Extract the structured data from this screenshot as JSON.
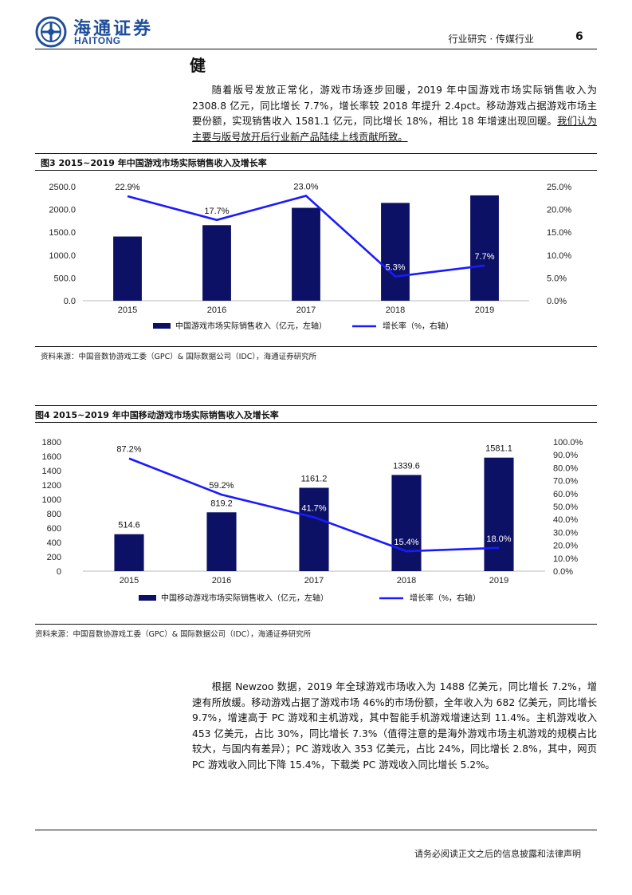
{
  "header": {
    "logo_cn": "海通证券",
    "logo_en": "HAITONG",
    "section": "行业研究 · 传媒行业",
    "page": "6"
  },
  "heading_char": "健",
  "paragraph1": {
    "text": "随着版号发放正常化，游戏市场逐步回暖，2019 年中国游戏市场实际销售收入为 2308.8 亿元，同比增长 7.7%，增长率较 2018 年提升 2.4pct。移动游戏占据游戏市场主要份额，实现销售收入 1581.1 亿元，同比增长 18%，相比 18 年增速出现回暖。",
    "underlined": "我们认为主要与版号放开后行业新产品陆续上线贡献所致。"
  },
  "figure3": {
    "title": "图3  2015~2019 年中国游戏市场实际销售收入及增长率",
    "source": "资料来源：中国音数协游戏工委（GPC）& 国际数据公司（IDC），海通证券研究所",
    "legend_bar": "中国游戏市场实际销售收入（亿元，左轴）",
    "legend_line": "增长率（%，右轴）"
  },
  "figure4": {
    "title": "图4  2015~2019 年中国移动游戏市场实际销售收入及增长率",
    "source": "资料来源：中国音数协游戏工委（GPC）& 国际数据公司（IDC），海通证券研究所",
    "legend_bar": "中国移动游戏市场实际销售收入（亿元，左轴）",
    "legend_line": "增长率（%，右轴）"
  },
  "paragraph2": {
    "text": "根据 Newzoo 数据，2019 年全球游戏市场收入为 1488 亿美元，同比增长 7.2%，增速有所放缓。移动游戏占据了游戏市场 46%的市场份额，全年收入为 682 亿美元，同比增长 9.7%，增速高于 PC 游戏和主机游戏，其中智能手机游戏增速达到 11.4%。主机游戏收入 453 亿美元，占比 30%，同比增长 7.3%（值得注意的是海外游戏市场主机游戏的规模占比较大，与国内有差异）；PC 游戏收入 353 亿美元，占比 24%，同比增长 2.8%，其中，网页 PC 游戏收入同比下降 15.4%，下载类 PC 游戏收入同比增长 5.2%。"
  },
  "footer": "请务必阅读正文之后的信息披露和法律声明",
  "colors": {
    "bar": "#0d1166",
    "line": "#1a1aff",
    "brand": "#1f4e9c"
  },
  "chart_data": [
    {
      "type": "bar",
      "categories": [
        "2015",
        "2016",
        "2017",
        "2018",
        "2019"
      ],
      "series": [
        {
          "name": "中国游戏市场实际销售收入（亿元，左轴）",
          "type": "bar",
          "axis": "left",
          "values": [
            1407,
            1656,
            2036,
            2144,
            2309
          ]
        },
        {
          "name": "增长率（%，右轴）",
          "type": "line",
          "axis": "right",
          "values": [
            22.9,
            17.7,
            23.0,
            5.3,
            7.7
          ],
          "labels": [
            "22.9%",
            "17.7%",
            "23.0%",
            "5.3%",
            "7.7%"
          ]
        }
      ],
      "left_axis": {
        "ylim": [
          0,
          2500
        ],
        "ticks": [
          "0.0",
          "500.0",
          "1000.0",
          "1500.0",
          "2000.0",
          "2500.0"
        ]
      },
      "right_axis": {
        "ylim": [
          0,
          25
        ],
        "ticks": [
          "0.0%",
          "5.0%",
          "10.0%",
          "15.0%",
          "20.0%",
          "25.0%"
        ]
      },
      "legend": "bottom"
    },
    {
      "type": "bar",
      "categories": [
        "2015",
        "2016",
        "2017",
        "2018",
        "2019"
      ],
      "series": [
        {
          "name": "中国移动游戏市场实际销售收入（亿元，左轴）",
          "type": "bar",
          "axis": "left",
          "values": [
            514.6,
            819.2,
            1161.2,
            1339.6,
            1581.1
          ],
          "labels": [
            "514.6",
            "819.2",
            "1161.2",
            "1339.6",
            "1581.1"
          ]
        },
        {
          "name": "增长率（%，右轴）",
          "type": "line",
          "axis": "right",
          "values": [
            87.2,
            59.2,
            41.7,
            15.4,
            18.0
          ],
          "labels": [
            "87.2%",
            "59.2%",
            "41.7%",
            "15.4%",
            "18.0%"
          ]
        }
      ],
      "left_axis": {
        "ylim": [
          0,
          1800
        ],
        "ticks": [
          "0",
          "200",
          "400",
          "600",
          "800",
          "1000",
          "1200",
          "1400",
          "1600",
          "1800"
        ]
      },
      "right_axis": {
        "ylim": [
          0,
          100
        ],
        "ticks": [
          "0.0%",
          "10.0%",
          "20.0%",
          "30.0%",
          "40.0%",
          "50.0%",
          "60.0%",
          "70.0%",
          "80.0%",
          "90.0%",
          "100.0%"
        ]
      },
      "legend": "bottom"
    }
  ]
}
